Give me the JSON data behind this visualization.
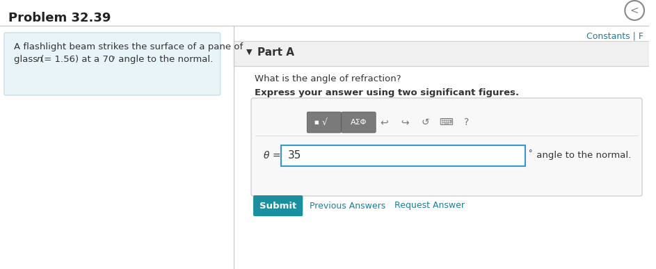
{
  "title": "Problem 32.39",
  "constants_label": "Constants | F",
  "problem_text_line1": "A flashlight beam strikes the surface of a pane of",
  "part_label": "Part A",
  "question": "What is the angle of refraction?",
  "instruction": "Express your answer using two significant figures.",
  "theta_label": "θ =",
  "answer_value": "35",
  "degree_symbol": "°",
  "suffix": " angle to the normal.",
  "submit_label": "Submit",
  "prev_label": "Previous Answers",
  "req_label": "Request Answer",
  "bg_color": "#ffffff",
  "problem_box_bg": "#e8f4f8",
  "problem_box_border": "#c8dde8",
  "part_header_bg": "#f0f0f0",
  "part_header_border": "#d0d0d0",
  "answer_box_bg": "#f8f8f8",
  "answer_box_border": "#d0d0d0",
  "input_box_border": "#3399cc",
  "submit_bg": "#1a8fa0",
  "submit_text": "#ffffff",
  "title_color": "#222222",
  "constants_color": "#1a7fa0",
  "link_color": "#1a7fa0",
  "text_color": "#333333",
  "toolbar_btn_color": "#777777",
  "divider_color": "#cccccc",
  "nav_circle_color": "#888888"
}
